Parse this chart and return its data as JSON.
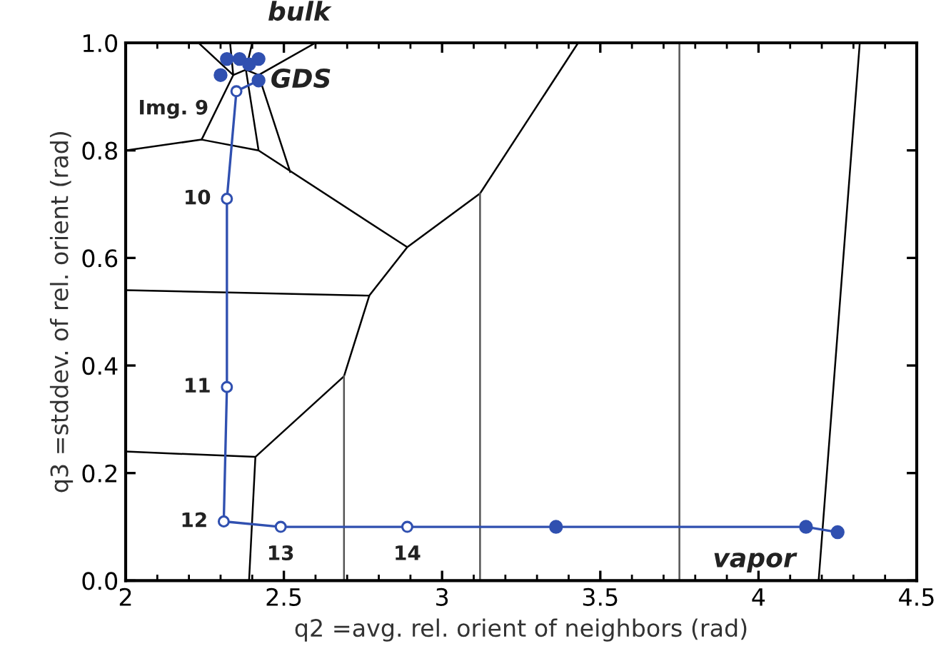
{
  "chart_data": {
    "type": "line",
    "xlabel": "q2 =avg. rel. orient of neighbors (rad)",
    "ylabel": "q3 =stddev. of rel. orient (rad)",
    "xlim": [
      2,
      4.5
    ],
    "xticks": [
      2,
      2.5,
      3,
      3.5,
      4,
      4.5
    ],
    "ylim": [
      0,
      1
    ],
    "yticks": [
      {
        "value": 0,
        "label": "0.0"
      },
      {
        "value": 0.2,
        "label": "0.2"
      },
      {
        "value": 0.4,
        "label": "0.4"
      },
      {
        "value": 0.6,
        "label": "0.6"
      },
      {
        "value": 0.8,
        "label": "0.8"
      },
      {
        "value": 1,
        "label": "1.0"
      }
    ],
    "grid": false,
    "series": [
      {
        "color": "#000000",
        "marker": "none",
        "x": [
          2.23,
          2.34,
          2.24,
          2.0,
          null,
          2.33,
          2.34,
          null,
          2.4,
          2.38,
          2.42,
          null,
          2.6,
          2.42,
          2.52,
          null,
          2.34,
          2.38,
          2.42,
          null,
          2.24,
          2.42,
          2.89,
          3.12,
          3.43,
          null,
          2.89,
          2.77,
          2.69,
          2.41,
          2.0,
          null,
          2.77,
          2.0,
          null,
          2.41,
          2.39,
          null,
          4.32,
          4.19
        ],
        "values": [
          1.0,
          0.94,
          0.82,
          0.8,
          null,
          1.0,
          0.94,
          null,
          1.0,
          0.95,
          0.8,
          null,
          1.0,
          0.94,
          0.76,
          null,
          0.94,
          0.95,
          0.94,
          null,
          0.82,
          0.8,
          0.62,
          0.72,
          1.0,
          null,
          0.62,
          0.53,
          0.38,
          0.23,
          0.24,
          null,
          0.53,
          0.54,
          null,
          0.23,
          0.0,
          null,
          1.0,
          0.0
        ]
      },
      {
        "color": "#555555",
        "marker": "none",
        "x": [
          3.12,
          3.12,
          null,
          2.69,
          2.69,
          null,
          3.75,
          3.75
        ],
        "values": [
          0.72,
          0.0,
          null,
          0.38,
          0.0,
          null,
          1.0,
          0.0
        ]
      },
      {
        "type": "line",
        "color": "#3050b0",
        "marker": "circle",
        "x": [
          2.42,
          2.35,
          2.32,
          2.32,
          2.31,
          2.49,
          2.89,
          3.36,
          4.15,
          4.25
        ],
        "values": [
          0.93,
          0.91,
          0.71,
          0.36,
          0.11,
          0.1,
          0.1,
          0.1,
          0.1,
          0.09
        ]
      },
      {
        "type": "scatter",
        "color": "#3050b0",
        "marker": "circle",
        "x": [
          2.3,
          2.32,
          2.36,
          2.39,
          2.42,
          2.42,
          3.36,
          4.15,
          4.25
        ],
        "values": [
          0.94,
          0.97,
          0.97,
          0.96,
          0.97,
          0.93,
          0.1,
          0.1,
          0.09
        ]
      }
    ],
    "annotations": [
      {
        "text": "bulk",
        "x": 2.36,
        "y": 0.97
      },
      {
        "text": "GDS",
        "x": 2.42,
        "y": 0.93
      },
      {
        "text": "Img. 9",
        "x": 2.35,
        "y": 0.91
      },
      {
        "text": "10",
        "x": 2.32,
        "y": 0.71
      },
      {
        "text": "11",
        "x": 2.32,
        "y": 0.36
      },
      {
        "text": "12",
        "x": 2.31,
        "y": 0.11
      },
      {
        "text": "13",
        "x": 2.49,
        "y": 0.1
      },
      {
        "text": "14",
        "x": 2.89,
        "y": 0.1
      },
      {
        "text": "vapor",
        "x": 4.25,
        "y": 0.09
      }
    ]
  }
}
